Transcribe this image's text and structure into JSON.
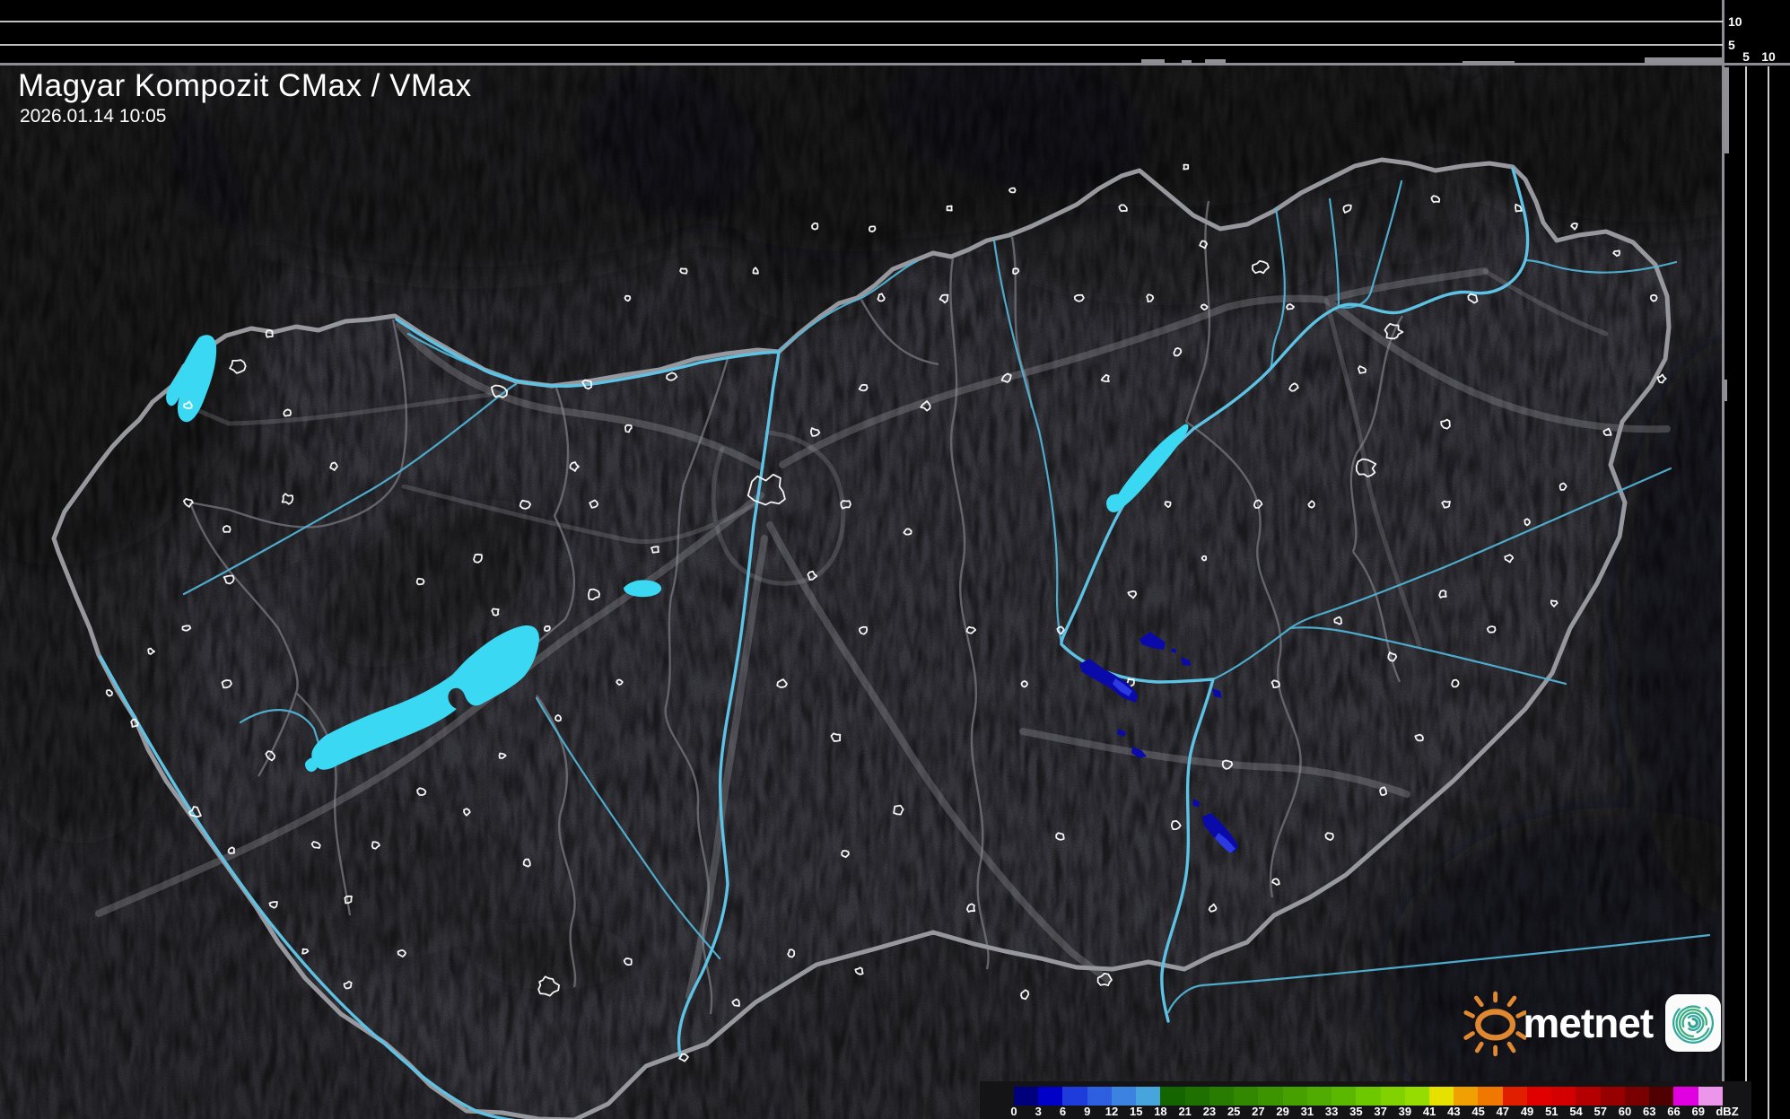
{
  "header": {
    "title": "Magyar Kompozit CMax / VMax",
    "timestamp": "2026.01.14 10:05"
  },
  "panels": {
    "top_axis_labels": [
      "10",
      "5"
    ],
    "right_axis_labels": [
      "5",
      "10"
    ]
  },
  "legend": {
    "unit": "dBZ",
    "ticks": [
      "0",
      "3",
      "6",
      "9",
      "12",
      "15",
      "18",
      "21",
      "23",
      "25",
      "27",
      "29",
      "31",
      "33",
      "35",
      "37",
      "39",
      "41",
      "43",
      "45",
      "47",
      "49",
      "51",
      "54",
      "57",
      "60",
      "63",
      "66",
      "69"
    ],
    "colors": [
      "#00007d",
      "#0000c8",
      "#1e3cdc",
      "#2d5fe0",
      "#3c82e1",
      "#46a5dc",
      "#146400",
      "#1e7000",
      "#287c00",
      "#328800",
      "#3c9400",
      "#46a000",
      "#50ac00",
      "#5ab800",
      "#6ec800",
      "#82d200",
      "#96dc00",
      "#e6e100",
      "#f0a000",
      "#f07800",
      "#e11e00",
      "#e10000",
      "#d20000",
      "#b40000",
      "#960000",
      "#780000",
      "#500000",
      "#e100e1",
      "#eb96eb",
      "#96e6e6"
    ]
  },
  "branding": {
    "name": "metnet",
    "sun_icon": "sun-icon",
    "spiral_icon": "spiral-logo-icon"
  },
  "map_colors": {
    "water": "#3bd8f3",
    "river": "#52b6d8",
    "precip_dark": "#0a0aa8",
    "precip_bright": "#2a3ae0",
    "border": "#97979e"
  }
}
